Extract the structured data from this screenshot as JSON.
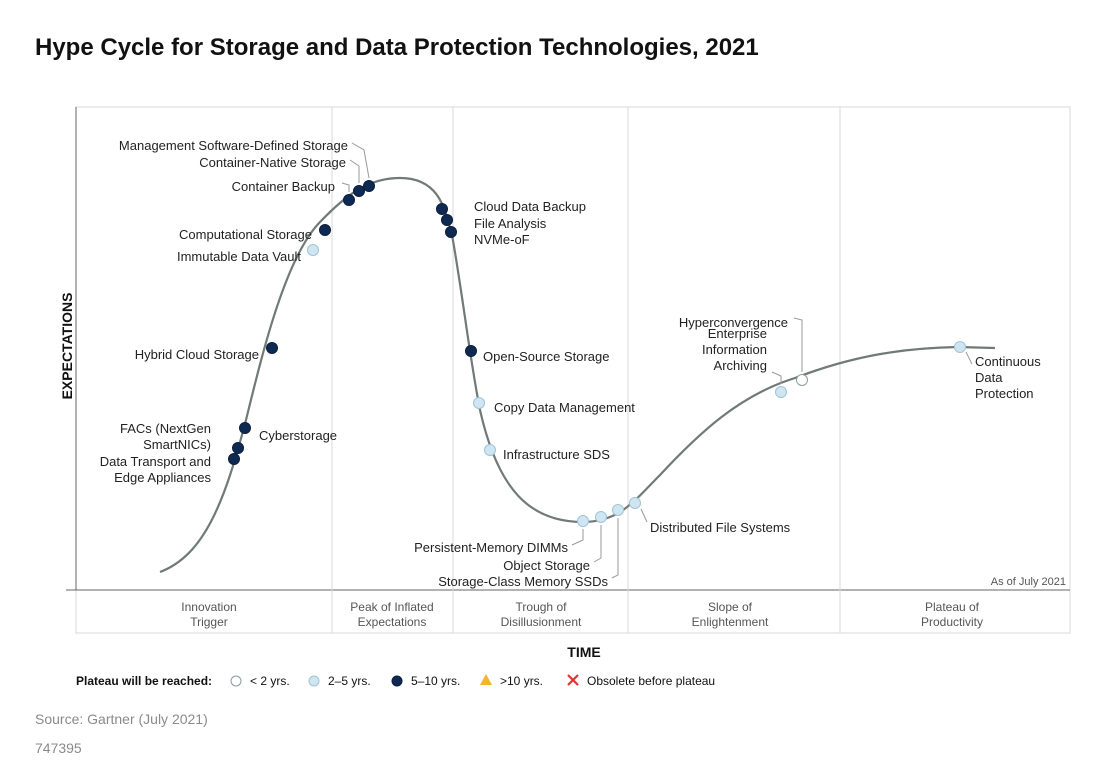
{
  "title": "Hype Cycle for Storage and Data Protection Technologies, 2021",
  "source": "Source: Gartner (July 2021)",
  "doc_id": "747395",
  "colors": {
    "less_than_2": "#ffffff",
    "two_to_five": "#cfe6f2",
    "five_to_ten": "#0f2a52",
    "more_than_10": "#f2b52c",
    "obsolete": "#e0332e",
    "curve": "#707a78"
  },
  "chart_data": {
    "type": "hype-cycle",
    "title": "Hype Cycle for Storage and Data Protection Technologies, 2021",
    "xlabel": "TIME",
    "ylabel": "EXPECTATIONS",
    "as_of": "As of July 2021",
    "phases": [
      {
        "label": "Innovation\nTrigger"
      },
      {
        "label": "Peak of Inflated\nExpectations"
      },
      {
        "label": "Trough of\nDisillusionment"
      },
      {
        "label": "Slope of\nEnlightenment"
      },
      {
        "label": "Plateau of\nProductivity"
      }
    ],
    "legend": {
      "title": "Plateau will be reached:",
      "items": [
        {
          "key": "lt2",
          "label": "< 2 yrs."
        },
        {
          "key": "2to5",
          "label": "2–5 yrs."
        },
        {
          "key": "5to10",
          "label": "5–10 yrs."
        },
        {
          "key": "gt10",
          "label": ">10 yrs."
        },
        {
          "key": "obsolete",
          "label": "Obsolete before plateau"
        }
      ]
    },
    "technologies": [
      {
        "name": "Data Transport and\nEdge Appliances",
        "phase": "Innovation Trigger",
        "plateau": "5to10"
      },
      {
        "name": "FACs (NextGen\nSmartNICs)",
        "phase": "Innovation Trigger",
        "plateau": "5to10"
      },
      {
        "name": "Cyberstorage",
        "phase": "Innovation Trigger",
        "plateau": "5to10"
      },
      {
        "name": "Hybrid Cloud Storage",
        "phase": "Innovation Trigger",
        "plateau": "5to10"
      },
      {
        "name": "Immutable Data Vault",
        "phase": "Innovation Trigger",
        "plateau": "2to5"
      },
      {
        "name": "Computational Storage",
        "phase": "Innovation Trigger",
        "plateau": "5to10"
      },
      {
        "name": "Container Backup",
        "phase": "Peak of Inflated Expectations",
        "plateau": "5to10"
      },
      {
        "name": "Container-Native Storage",
        "phase": "Peak of Inflated Expectations",
        "plateau": "5to10"
      },
      {
        "name": "Management Software-Defined Storage",
        "phase": "Peak of Inflated Expectations",
        "plateau": "5to10"
      },
      {
        "name": "Cloud Data Backup",
        "phase": "Peak of Inflated Expectations",
        "plateau": "5to10"
      },
      {
        "name": "File Analysis",
        "phase": "Trough of Disillusionment",
        "plateau": "5to10"
      },
      {
        "name": "NVMe-oF",
        "phase": "Trough of Disillusionment",
        "plateau": "5to10"
      },
      {
        "name": "Open-Source Storage",
        "phase": "Trough of Disillusionment",
        "plateau": "5to10"
      },
      {
        "name": "Copy Data Management",
        "phase": "Trough of Disillusionment",
        "plateau": "2to5"
      },
      {
        "name": "Infrastructure SDS",
        "phase": "Trough of Disillusionment",
        "plateau": "2to5"
      },
      {
        "name": "Persistent-Memory DIMMs",
        "phase": "Trough of Disillusionment",
        "plateau": "2to5"
      },
      {
        "name": "Object Storage",
        "phase": "Trough of Disillusionment",
        "plateau": "2to5"
      },
      {
        "name": "Storage-Class Memory SSDs",
        "phase": "Trough of Disillusionment",
        "plateau": "2to5"
      },
      {
        "name": "Distributed File Systems",
        "phase": "Slope of Enlightenment",
        "plateau": "2to5"
      },
      {
        "name": "Enterprise\nInformation\nArchiving",
        "phase": "Slope of Enlightenment",
        "plateau": "2to5"
      },
      {
        "name": "Hyperconvergence",
        "phase": "Slope of Enlightenment",
        "plateau": "lt2"
      },
      {
        "name": "Continuous\nData\nProtection",
        "phase": "Plateau of Productivity",
        "plateau": "2to5"
      }
    ]
  }
}
